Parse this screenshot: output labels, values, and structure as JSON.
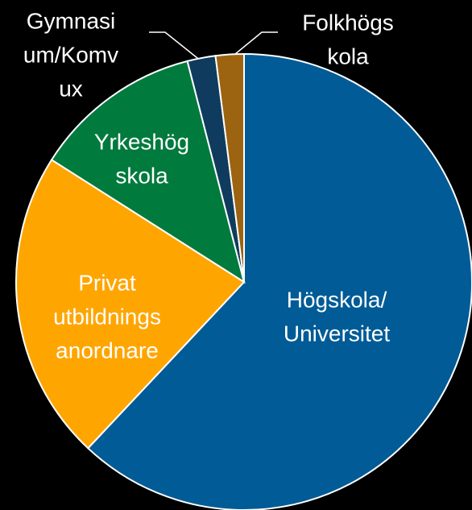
{
  "chart_data": {
    "type": "pie",
    "categories": [
      [
        "Högskola/",
        "Universitet"
      ],
      [
        "Privat",
        "utbildnings",
        "anordnare"
      ],
      [
        "Yrkeshög",
        "skola"
      ],
      [
        "Gymnasi",
        "um/Komv",
        "ux"
      ],
      [
        "Folkhögs",
        "kola"
      ]
    ],
    "values": [
      62,
      22,
      12,
      2,
      2
    ],
    "colors": [
      "#005b96",
      "#ffa500",
      "#007a3d",
      "#0f3c5e",
      "#9c6410"
    ]
  }
}
